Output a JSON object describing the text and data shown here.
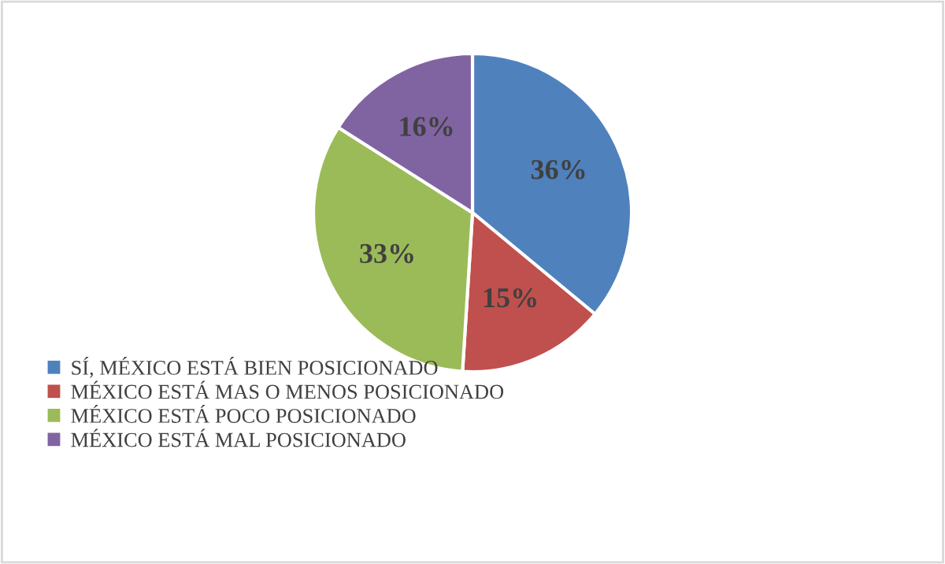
{
  "chart_data": {
    "type": "pie",
    "categories": [
      "SÍ, MÉXICO ESTÁ BIEN POSICIONADO",
      "MÉXICO ESTÁ MAS O MENOS POSICIONADO",
      "MÉXICO ESTÁ POCO POSICIONADO",
      "MÉXICO ESTÁ MAL POSICIONADO"
    ],
    "values": [
      36,
      15,
      33,
      16
    ],
    "value_labels": [
      "36%",
      "15%",
      "33%",
      "16%"
    ],
    "colors": [
      "#4f81bd",
      "#c0504d",
      "#9bbb59",
      "#8064a2"
    ],
    "legend": "bottom left"
  }
}
